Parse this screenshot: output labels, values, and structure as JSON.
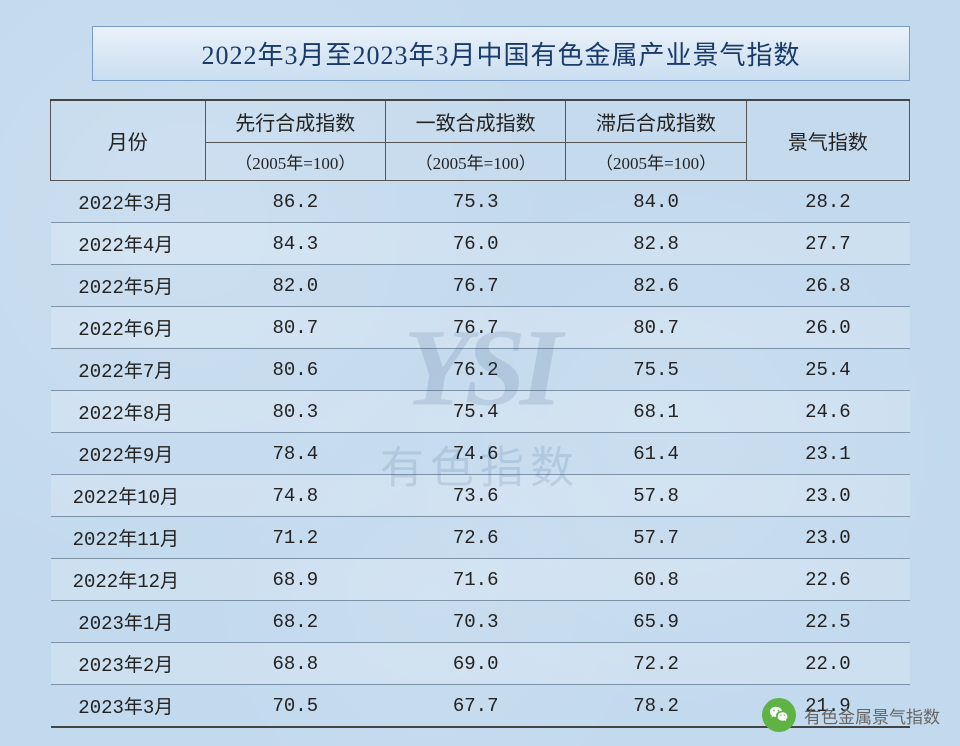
{
  "title": "2022年3月至2023年3月中国有色金属产业景气指数",
  "table": {
    "header": {
      "month": "月份",
      "col1": "先行合成指数",
      "col2": "一致合成指数",
      "col3": "滞后合成指数",
      "col4": "景气指数",
      "base": "（2005年=100）"
    },
    "rows": [
      {
        "month": "2022年3月",
        "c1": "86.2",
        "c2": "75.3",
        "c3": "84.0",
        "c4": "28.2"
      },
      {
        "month": "2022年4月",
        "c1": "84.3",
        "c2": "76.0",
        "c3": "82.8",
        "c4": "27.7"
      },
      {
        "month": "2022年5月",
        "c1": "82.0",
        "c2": "76.7",
        "c3": "82.6",
        "c4": "26.8"
      },
      {
        "month": "2022年6月",
        "c1": "80.7",
        "c2": "76.7",
        "c3": "80.7",
        "c4": "26.0"
      },
      {
        "month": "2022年7月",
        "c1": "80.6",
        "c2": "76.2",
        "c3": "75.5",
        "c4": "25.4"
      },
      {
        "month": "2022年8月",
        "c1": "80.3",
        "c2": "75.4",
        "c3": "68.1",
        "c4": "24.6"
      },
      {
        "month": "2022年9月",
        "c1": "78.4",
        "c2": "74.6",
        "c3": "61.4",
        "c4": "23.1"
      },
      {
        "month": "2022年10月",
        "c1": "74.8",
        "c2": "73.6",
        "c3": "57.8",
        "c4": "23.0"
      },
      {
        "month": "2022年11月",
        "c1": "71.2",
        "c2": "72.6",
        "c3": "57.7",
        "c4": "23.0"
      },
      {
        "month": "2022年12月",
        "c1": "68.9",
        "c2": "71.6",
        "c3": "60.8",
        "c4": "22.6"
      },
      {
        "month": "2023年1月",
        "c1": "68.2",
        "c2": "70.3",
        "c3": "65.9",
        "c4": "22.5"
      },
      {
        "month": "2023年2月",
        "c1": "68.8",
        "c2": "69.0",
        "c3": "72.2",
        "c4": "22.0"
      },
      {
        "month": "2023年3月",
        "c1": "70.5",
        "c2": "67.7",
        "c3": "78.2",
        "c4": "21.9"
      }
    ]
  },
  "watermark": {
    "line1": "YSI",
    "line2": "有色指数"
  },
  "footer_brand": "有色金属景气指数",
  "style": {
    "background_color": "#c3d9ed",
    "title_bg_top": "#e9f1f9",
    "title_bg_bottom": "#cadef0",
    "title_border": "#7a9cc2",
    "title_color": "#1a3a6b",
    "title_fontsize": 26,
    "header_fontsize": 20,
    "subheader_fontsize": 17,
    "cell_fontsize": 19,
    "row_border": "#7f93a8",
    "row_alt_bg": "rgba(255,255,255,0.18)",
    "text_color": "#222",
    "watermark_color": "#274a78",
    "watermark_opacity": 0.13,
    "wechat_icon_bg": "#5fb344",
    "brand_text_color": "#666",
    "col_widths_pct": [
      18,
      21,
      21,
      21,
      19
    ]
  }
}
